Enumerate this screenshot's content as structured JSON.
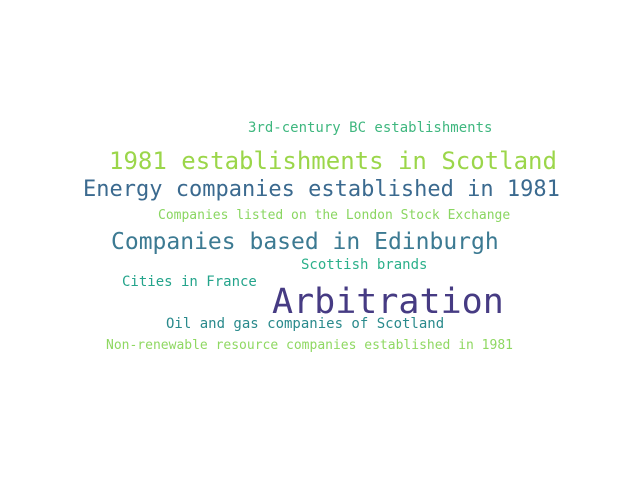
{
  "words": [
    {
      "text": "3rd-century BC establishments",
      "color": "#3fb77f"
    },
    {
      "text": "1981 establishments in Scotland",
      "color": "#9bd64a"
    },
    {
      "text": "Energy companies established in 1981",
      "color": "#3b6a8f"
    },
    {
      "text": "Companies listed on the London Stock Exchange",
      "color": "#8ad661"
    },
    {
      "text": "Companies based in Edinburgh",
      "color": "#3c7a92"
    },
    {
      "text": "Scottish brands",
      "color": "#2bb08a"
    },
    {
      "text": "Cities in France",
      "color": "#24a48b"
    },
    {
      "text": "Arbitration",
      "color": "#463b83"
    },
    {
      "text": "Oil and gas companies of Scotland",
      "color": "#2a8a8c"
    },
    {
      "text": "Non-renewable resource companies established in 1981",
      "color": "#8fd862"
    }
  ]
}
